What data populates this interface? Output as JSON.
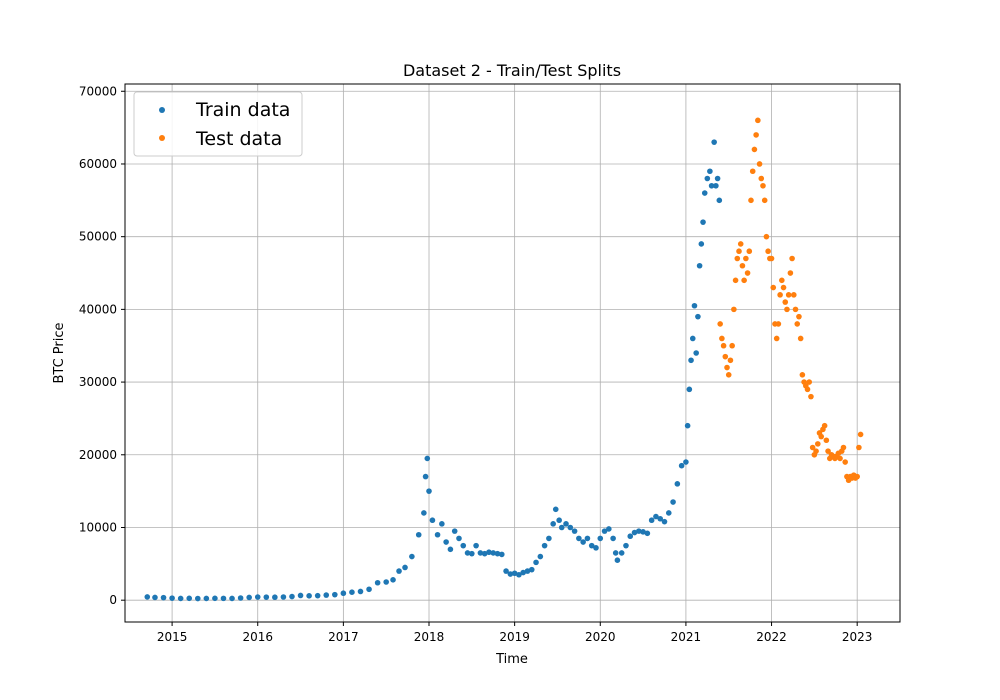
{
  "chart_data": {
    "type": "scatter",
    "title": "Dataset 2 - Train/Test Splits",
    "xlabel": "Time",
    "ylabel": "BTC Price",
    "xlim": [
      2014.45,
      2023.5
    ],
    "ylim": [
      -3000,
      71000
    ],
    "x_ticks": [
      2015,
      2016,
      2017,
      2018,
      2019,
      2020,
      2021,
      2022,
      2023
    ],
    "y_ticks": [
      0,
      10000,
      20000,
      30000,
      40000,
      50000,
      60000,
      70000
    ],
    "grid": true,
    "legend": {
      "placement": "top-left"
    },
    "series": [
      {
        "name": "Train data",
        "color": "#1f77b4",
        "x": [
          2014.71,
          2014.8,
          2014.9,
          2015.0,
          2015.1,
          2015.2,
          2015.3,
          2015.4,
          2015.5,
          2015.6,
          2015.7,
          2015.8,
          2015.9,
          2016.0,
          2016.1,
          2016.2,
          2016.3,
          2016.4,
          2016.5,
          2016.6,
          2016.7,
          2016.8,
          2016.9,
          2017.0,
          2017.1,
          2017.2,
          2017.3,
          2017.4,
          2017.5,
          2017.58,
          2017.65,
          2017.72,
          2017.8,
          2017.88,
          2017.94,
          2017.96,
          2017.98,
          2018.0,
          2018.04,
          2018.1,
          2018.15,
          2018.2,
          2018.25,
          2018.3,
          2018.35,
          2018.4,
          2018.45,
          2018.5,
          2018.55,
          2018.6,
          2018.65,
          2018.7,
          2018.75,
          2018.8,
          2018.85,
          2018.9,
          2018.95,
          2019.0,
          2019.05,
          2019.1,
          2019.15,
          2019.2,
          2019.25,
          2019.3,
          2019.35,
          2019.4,
          2019.45,
          2019.48,
          2019.52,
          2019.55,
          2019.6,
          2019.65,
          2019.7,
          2019.75,
          2019.8,
          2019.85,
          2019.9,
          2019.95,
          2020.0,
          2020.05,
          2020.1,
          2020.15,
          2020.18,
          2020.2,
          2020.25,
          2020.3,
          2020.35,
          2020.4,
          2020.45,
          2020.5,
          2020.55,
          2020.6,
          2020.65,
          2020.7,
          2020.75,
          2020.8,
          2020.85,
          2020.9,
          2020.95,
          2021.0,
          2021.02,
          2021.04,
          2021.06,
          2021.08,
          2021.1,
          2021.12,
          2021.14,
          2021.16,
          2021.18,
          2021.2,
          2021.22,
          2021.25,
          2021.28,
          2021.3,
          2021.33,
          2021.35,
          2021.37,
          2021.39
        ],
        "y": [
          450,
          380,
          350,
          280,
          240,
          260,
          230,
          240,
          260,
          250,
          240,
          300,
          380,
          430,
          420,
          410,
          440,
          500,
          650,
          600,
          620,
          700,
          760,
          960,
          1100,
          1200,
          1500,
          2400,
          2500,
          2800,
          4000,
          4500,
          6000,
          9000,
          12000,
          17000,
          19500,
          15000,
          11000,
          9000,
          10500,
          8000,
          7000,
          9500,
          8500,
          7500,
          6500,
          6400,
          7500,
          6500,
          6400,
          6600,
          6500,
          6400,
          6300,
          4000,
          3600,
          3700,
          3500,
          3800,
          4000,
          4200,
          5200,
          6000,
          7500,
          8500,
          10500,
          12500,
          11000,
          10000,
          10500,
          10000,
          9500,
          8500,
          8000,
          8500,
          7500,
          7200,
          8500,
          9500,
          9800,
          8500,
          6500,
          5500,
          6500,
          7500,
          8800,
          9300,
          9500,
          9400,
          9200,
          11000,
          11500,
          11200,
          10800,
          12000,
          13500,
          16000,
          18500,
          19000,
          24000,
          29000,
          33000,
          36000,
          40500,
          34000,
          39000,
          46000,
          49000,
          52000,
          56000,
          58000,
          59000,
          57000,
          63000,
          57000,
          58000,
          55000
        ]
      },
      {
        "name": "Test data",
        "color": "#ff7f0e",
        "x": [
          2021.4,
          2021.42,
          2021.44,
          2021.46,
          2021.48,
          2021.5,
          2021.52,
          2021.54,
          2021.56,
          2021.58,
          2021.6,
          2021.62,
          2021.64,
          2021.66,
          2021.68,
          2021.7,
          2021.72,
          2021.74,
          2021.76,
          2021.78,
          2021.8,
          2021.82,
          2021.84,
          2021.86,
          2021.88,
          2021.9,
          2021.92,
          2021.94,
          2021.96,
          2021.98,
          2022.0,
          2022.02,
          2022.04,
          2022.06,
          2022.08,
          2022.1,
          2022.12,
          2022.14,
          2022.16,
          2022.18,
          2022.2,
          2022.22,
          2022.24,
          2022.26,
          2022.28,
          2022.3,
          2022.32,
          2022.34,
          2022.36,
          2022.38,
          2022.4,
          2022.42,
          2022.44,
          2022.46,
          2022.48,
          2022.5,
          2022.52,
          2022.54,
          2022.56,
          2022.58,
          2022.6,
          2022.62,
          2022.64,
          2022.66,
          2022.68,
          2022.7,
          2022.72,
          2022.74,
          2022.76,
          2022.78,
          2022.8,
          2022.82,
          2022.84,
          2022.86,
          2022.88,
          2022.9,
          2022.92,
          2022.94,
          2022.96,
          2022.98,
          2023.0,
          2023.02,
          2023.04
        ],
        "y": [
          38000,
          36000,
          35000,
          33500,
          32000,
          31000,
          33000,
          35000,
          40000,
          44000,
          47000,
          48000,
          49000,
          46000,
          44000,
          47000,
          45000,
          48000,
          55000,
          59000,
          62000,
          64000,
          66000,
          60000,
          58000,
          57000,
          55000,
          50000,
          48000,
          47000,
          47000,
          43000,
          38000,
          36000,
          38000,
          42000,
          44000,
          43000,
          41000,
          40000,
          42000,
          45000,
          47000,
          42000,
          40000,
          38000,
          39000,
          36000,
          31000,
          30000,
          29500,
          29000,
          30000,
          28000,
          21000,
          20000,
          20500,
          21500,
          23000,
          22500,
          23500,
          24000,
          22000,
          20500,
          19500,
          20000,
          19800,
          19500,
          19800,
          20200,
          19500,
          20500,
          21000,
          19000,
          17000,
          16500,
          17000,
          16800,
          17200,
          16800,
          17000,
          21000,
          22800
        ]
      }
    ]
  }
}
